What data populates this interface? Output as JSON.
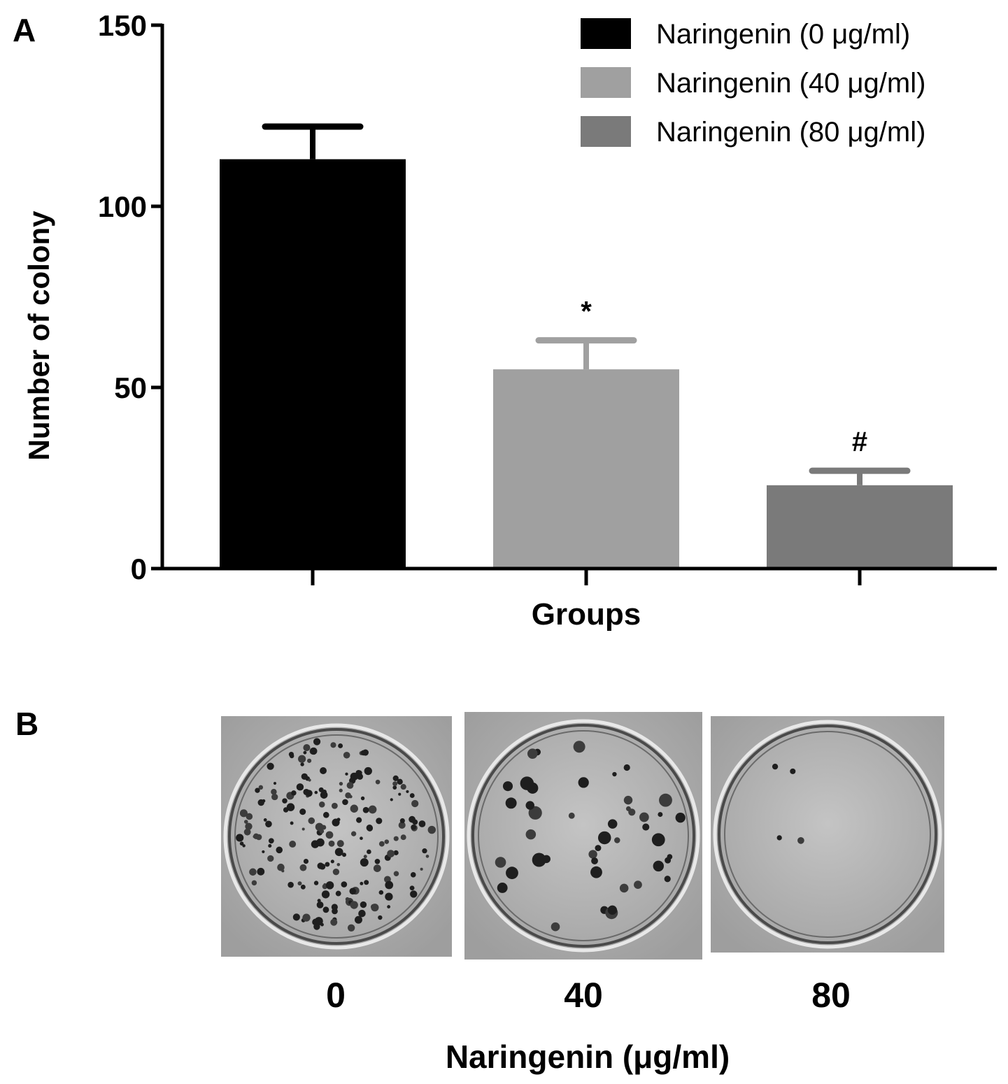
{
  "panels": {
    "a": "A",
    "b": "B"
  },
  "chart_data": {
    "type": "bar",
    "categories": [
      "Naringenin (0 μg/ml)",
      "Naringenin (40 μg/ml)",
      "Naringenin (80 μg/ml)"
    ],
    "values": [
      113,
      55,
      23
    ],
    "error": [
      9,
      8,
      4
    ],
    "significance": [
      "",
      "*",
      "#"
    ],
    "colors": [
      "#000000",
      "#a0a0a0",
      "#7a7a7a"
    ],
    "title": "",
    "xlabel": "Groups",
    "ylabel": "Number of colony",
    "ylim": [
      0,
      150
    ],
    "yticks": [
      0,
      50,
      100,
      150
    ],
    "legend_position": "top-right",
    "grid": false
  },
  "dishes": {
    "labels": [
      "0",
      "40",
      "80"
    ],
    "title": "Naringenin (μg/ml)",
    "colony_density": [
      "high",
      "medium",
      "very low"
    ]
  }
}
